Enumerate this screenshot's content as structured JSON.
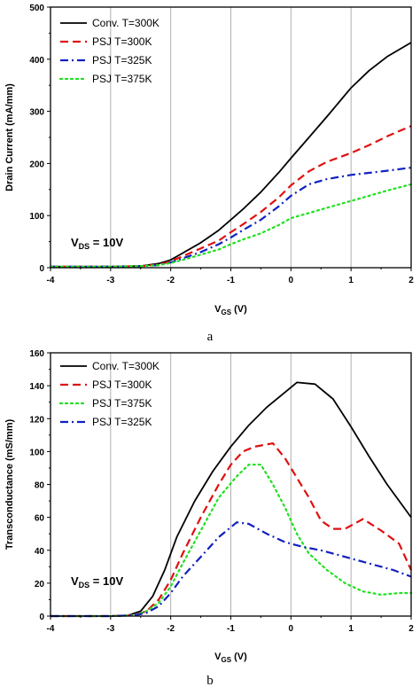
{
  "chart_data": [
    {
      "type": "line",
      "panel_label": "a",
      "xlabel": "V",
      "xlabel_sub": "GS",
      "xlabel_unit": " (V)",
      "ylabel": "Drain Current (mA/mm)",
      "xlim": [
        -4,
        2
      ],
      "ylim": [
        0,
        500
      ],
      "xticks": [
        -4,
        -3,
        -2,
        -1,
        0,
        1,
        2
      ],
      "yticks": [
        0,
        100,
        200,
        300,
        400,
        500
      ],
      "grid": "vertical",
      "legend_position": "top-left",
      "annotation": {
        "prefix": "V",
        "sub": "DS",
        "suffix": " = 10V"
      },
      "series": [
        {
          "name": "Conv. T=300K",
          "color": "#000000",
          "dash": "solid",
          "x": [
            -4,
            -3,
            -2.5,
            -2.2,
            -2,
            -1.8,
            -1.5,
            -1.2,
            -1,
            -0.8,
            -0.5,
            -0.2,
            0,
            0.3,
            0.6,
            1,
            1.3,
            1.6,
            2
          ],
          "y": [
            2,
            2,
            3,
            8,
            15,
            28,
            48,
            72,
            92,
            112,
            145,
            183,
            210,
            250,
            290,
            345,
            378,
            405,
            432
          ]
        },
        {
          "name": "PSJ T=300K",
          "color": "#e01010",
          "dash": "dashed",
          "x": [
            -4,
            -3,
            -2.5,
            -2.2,
            -2,
            -1.8,
            -1.5,
            -1.2,
            -1,
            -0.8,
            -0.5,
            -0.2,
            0,
            0.3,
            0.6,
            1,
            1.3,
            1.6,
            2
          ],
          "y": [
            2,
            2,
            3,
            6,
            12,
            22,
            37,
            52,
            68,
            83,
            107,
            135,
            158,
            185,
            203,
            220,
            235,
            252,
            272
          ]
        },
        {
          "name": "PSJ T=325K",
          "color": "#1020c0",
          "dash": "dashdot",
          "x": [
            -4,
            -3,
            -2.5,
            -2.2,
            -2,
            -1.8,
            -1.5,
            -1.2,
            -1,
            -0.8,
            -0.5,
            -0.2,
            0,
            0.3,
            0.6,
            1,
            1.3,
            1.6,
            2
          ],
          "y": [
            2,
            2,
            3,
            5,
            10,
            18,
            30,
            45,
            58,
            72,
            92,
            118,
            138,
            160,
            170,
            178,
            182,
            186,
            192
          ]
        },
        {
          "name": "PSJ T=375K",
          "color": "#20e020",
          "dash": "dotted",
          "x": [
            -4,
            -3,
            -2.5,
            -2.2,
            -2,
            -1.8,
            -1.5,
            -1.2,
            -1,
            -0.8,
            -0.5,
            -0.2,
            0,
            0.3,
            0.6,
            1,
            1.3,
            1.6,
            2
          ],
          "y": [
            2,
            2,
            3,
            5,
            9,
            15,
            25,
            35,
            45,
            54,
            66,
            82,
            95,
            105,
            115,
            128,
            138,
            148,
            160
          ]
        }
      ]
    },
    {
      "type": "line",
      "panel_label": "b",
      "xlabel": "V",
      "xlabel_sub": "GS",
      "xlabel_unit": " (V)",
      "ylabel": "Transconductance (mS/mm)",
      "xlim": [
        -4,
        2
      ],
      "ylim": [
        0,
        160
      ],
      "xticks": [
        -4,
        -3,
        -2,
        -1,
        0,
        1,
        2
      ],
      "yticks": [
        0,
        20,
        40,
        60,
        80,
        100,
        120,
        140,
        160
      ],
      "grid": "vertical",
      "legend_position": "top-left",
      "annotation": {
        "prefix": "V",
        "sub": "DS",
        "suffix": " = 10V"
      },
      "series": [
        {
          "name": "Conv. T=300K",
          "color": "#000000",
          "dash": "solid",
          "x": [
            -4,
            -3,
            -2.7,
            -2.5,
            -2.3,
            -2.1,
            -1.9,
            -1.6,
            -1.3,
            -1,
            -0.7,
            -0.4,
            -0.1,
            0.1,
            0.4,
            0.7,
            1,
            1.3,
            1.6,
            2
          ],
          "y": [
            0,
            0,
            0.5,
            3,
            12,
            28,
            48,
            70,
            88,
            103,
            116,
            127,
            136,
            142,
            141,
            132,
            115,
            97,
            80,
            60
          ]
        },
        {
          "name": "PSJ T=300K",
          "color": "#e01010",
          "dash": "dashed",
          "x": [
            -4,
            -3,
            -2.6,
            -2.4,
            -2.2,
            -2,
            -1.8,
            -1.5,
            -1.2,
            -1,
            -0.8,
            -0.6,
            -0.3,
            -0.1,
            0.1,
            0.3,
            0.5,
            0.7,
            0.9,
            1.2,
            1.5,
            1.8,
            2
          ],
          "y": [
            0,
            0,
            0.5,
            3,
            10,
            22,
            38,
            60,
            80,
            92,
            100,
            103,
            105,
            96,
            84,
            72,
            58,
            53,
            53,
            59,
            52,
            44,
            28
          ]
        },
        {
          "name": "PSJ T=375K",
          "color": "#20e020",
          "dash": "dotted",
          "x": [
            -4,
            -3,
            -2.6,
            -2.4,
            -2.2,
            -2,
            -1.8,
            -1.5,
            -1.2,
            -0.9,
            -0.7,
            -0.5,
            -0.3,
            -0.1,
            0.1,
            0.3,
            0.6,
            0.9,
            1.2,
            1.5,
            1.8,
            2
          ],
          "y": [
            0,
            0,
            0.5,
            3,
            8,
            18,
            32,
            52,
            72,
            85,
            92,
            92,
            80,
            66,
            50,
            38,
            28,
            20,
            15,
            13,
            14,
            14
          ]
        },
        {
          "name": "PSJ T=325K",
          "color": "#1020c0",
          "dash": "dashdot",
          "x": [
            -4,
            -3,
            -2.6,
            -2.4,
            -2.2,
            -2,
            -1.8,
            -1.5,
            -1.2,
            -0.9,
            -0.7,
            -0.4,
            -0.1,
            0.2,
            0.5,
            0.8,
            1.1,
            1.4,
            1.7,
            2
          ],
          "y": [
            0,
            0,
            0.5,
            2,
            6,
            14,
            24,
            36,
            48,
            57,
            56,
            50,
            45,
            42,
            40,
            37,
            34,
            31,
            28,
            24
          ]
        }
      ]
    }
  ]
}
